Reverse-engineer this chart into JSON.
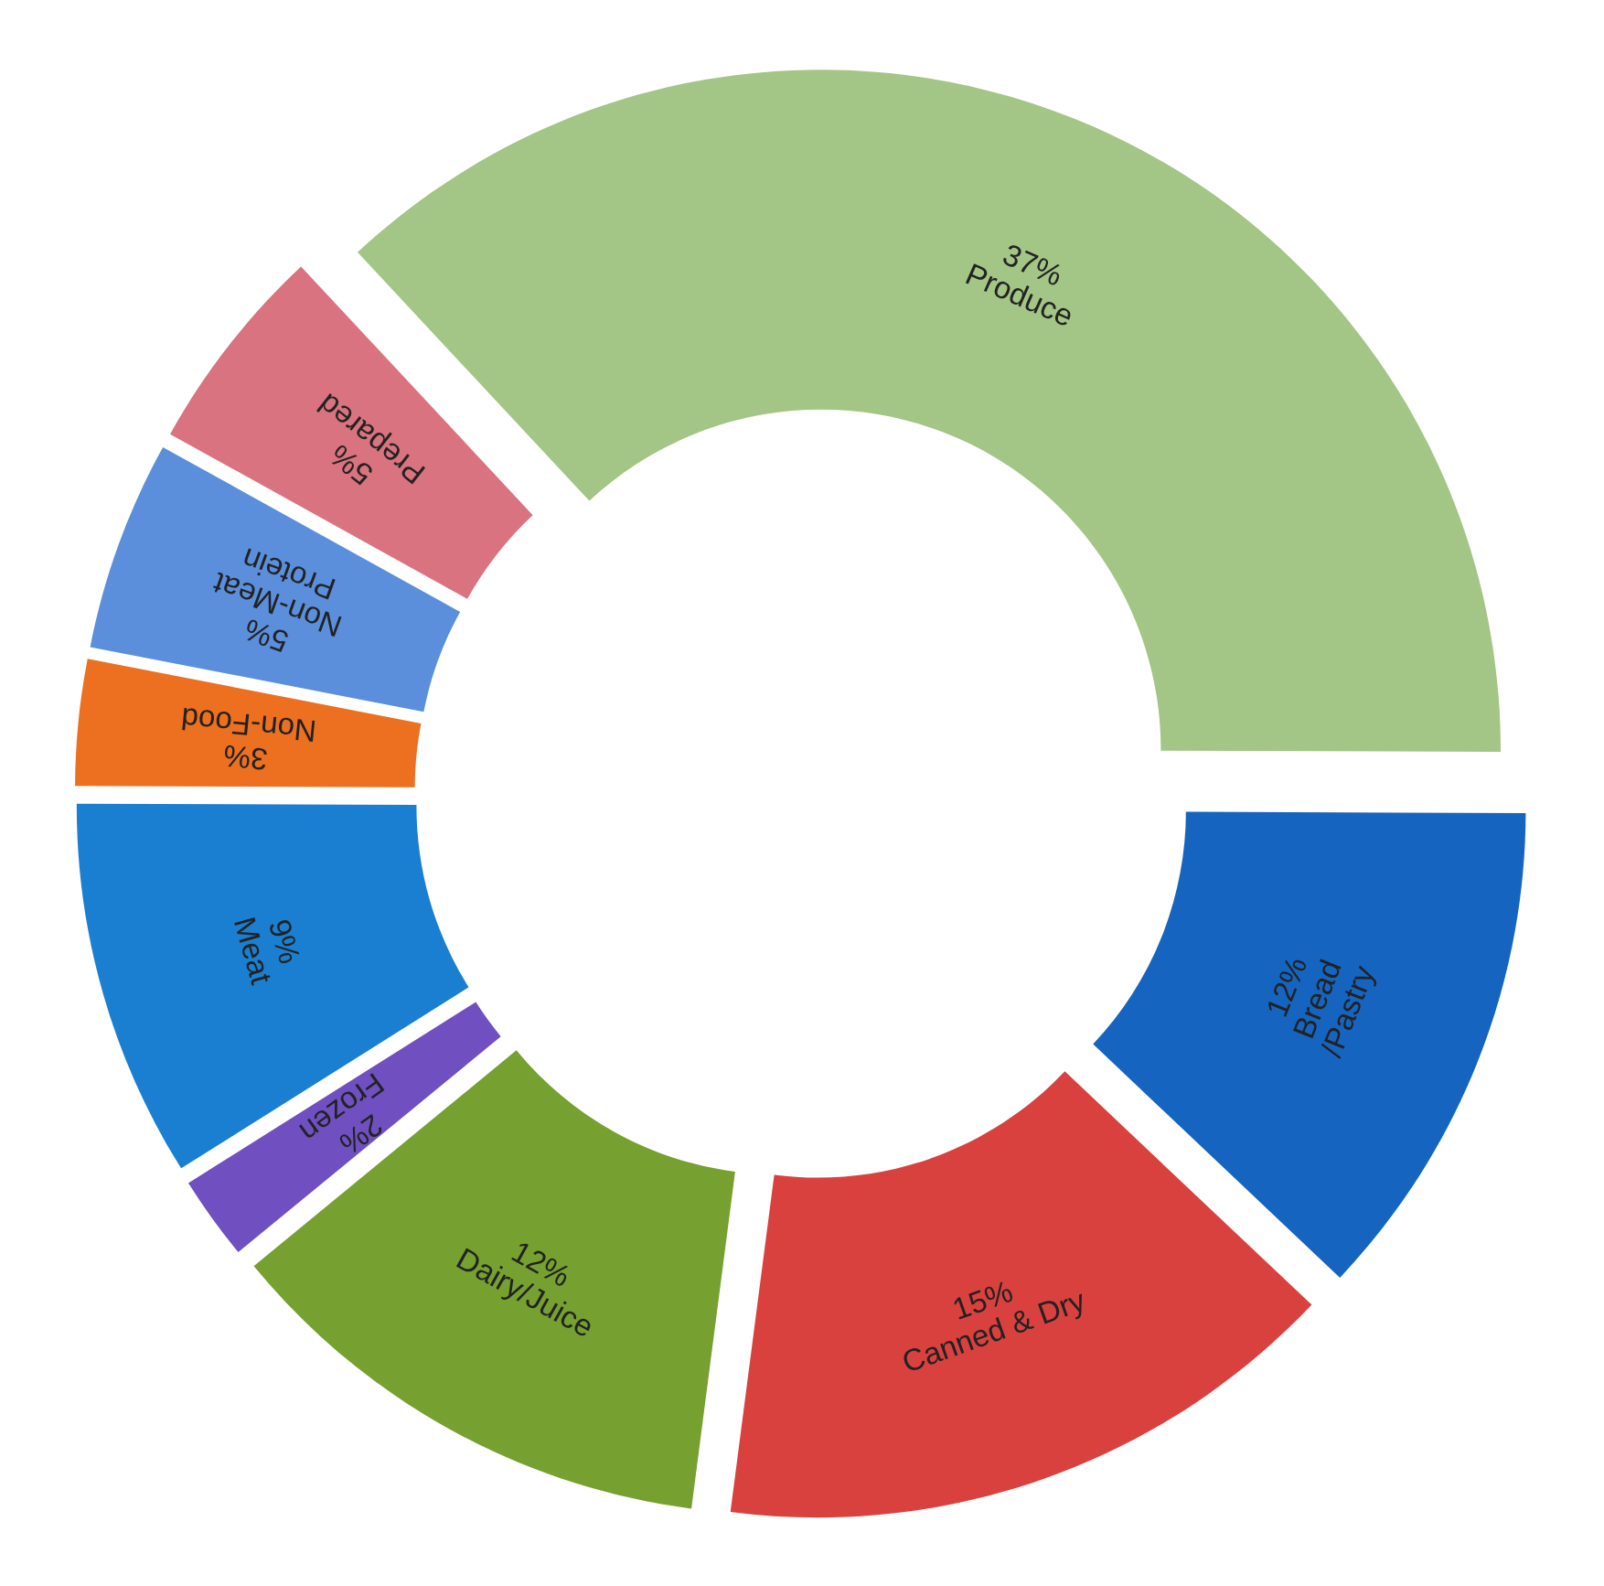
{
  "chart_data": {
    "type": "donut",
    "categories": [
      "Produce",
      "Bread /Pastry",
      "Canned & Dry",
      "Dairy/Juice",
      "Frozen",
      "Meat",
      "Non-Food",
      "Non-Meat Protein",
      "Prepared"
    ],
    "values": [
      37,
      12,
      15,
      12,
      2,
      9,
      3,
      5,
      5
    ],
    "colors": [
      "#a3c585",
      "#1565c0",
      "#d9413f",
      "#76a030",
      "#7050c0",
      "#1a7fd0",
      "#ec7020",
      "#5b8fdc",
      "#d9737f"
    ],
    "value_labels": [
      "37%",
      "12%",
      "15%",
      "12%",
      "2%",
      "9%",
      "3%",
      "5%",
      "5%"
    ]
  }
}
